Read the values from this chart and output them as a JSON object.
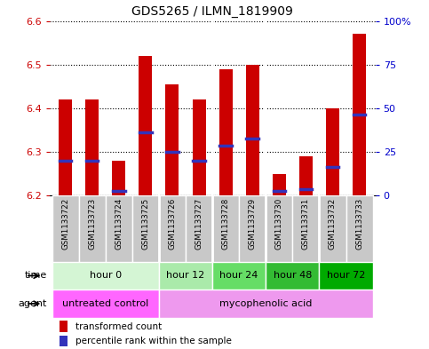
{
  "title": "GDS5265 / ILMN_1819909",
  "samples": [
    "GSM1133722",
    "GSM1133723",
    "GSM1133724",
    "GSM1133725",
    "GSM1133726",
    "GSM1133727",
    "GSM1133728",
    "GSM1133729",
    "GSM1133730",
    "GSM1133731",
    "GSM1133732",
    "GSM1133733"
  ],
  "bar_tops": [
    6.42,
    6.42,
    6.28,
    6.52,
    6.455,
    6.42,
    6.49,
    6.5,
    6.25,
    6.29,
    6.4,
    6.57
  ],
  "bar_bottom": 6.2,
  "blue_marks": [
    6.28,
    6.28,
    6.21,
    6.345,
    6.3,
    6.28,
    6.315,
    6.33,
    6.21,
    6.215,
    6.265,
    6.385
  ],
  "ylim": [
    6.2,
    6.6
  ],
  "yticks_left": [
    6.2,
    6.3,
    6.4,
    6.5,
    6.6
  ],
  "yticks_right_pct": [
    0,
    25,
    50,
    75,
    100
  ],
  "ytick_labels_right": [
    "0",
    "25",
    "50",
    "75",
    "100%"
  ],
  "bar_color": "#cc0000",
  "blue_color": "#3333bb",
  "background_color": "#ffffff",
  "left_axis_color": "#cc0000",
  "right_axis_color": "#0000cc",
  "time_groups": [
    {
      "label": "hour 0",
      "start": 0,
      "end": 3,
      "color": "#d4f5d4"
    },
    {
      "label": "hour 12",
      "start": 4,
      "end": 5,
      "color": "#aaeaaa"
    },
    {
      "label": "hour 24",
      "start": 6,
      "end": 7,
      "color": "#66dd66"
    },
    {
      "label": "hour 48",
      "start": 8,
      "end": 9,
      "color": "#33bb33"
    },
    {
      "label": "hour 72",
      "start": 10,
      "end": 11,
      "color": "#00aa00"
    }
  ],
  "agent_groups": [
    {
      "label": "untreated control",
      "start": 0,
      "end": 3,
      "color": "#ff66ff"
    },
    {
      "label": "mycophenolic acid",
      "start": 4,
      "end": 11,
      "color": "#ee99ee"
    }
  ],
  "legend_red_label": "transformed count",
  "legend_blue_label": "percentile rank within the sample",
  "time_label": "time",
  "agent_label": "agent",
  "sample_bg_color": "#c8c8c8",
  "sample_sep_color": "#ffffff",
  "group_boundaries": [
    3.5,
    5.5,
    7.5,
    9.5
  ]
}
